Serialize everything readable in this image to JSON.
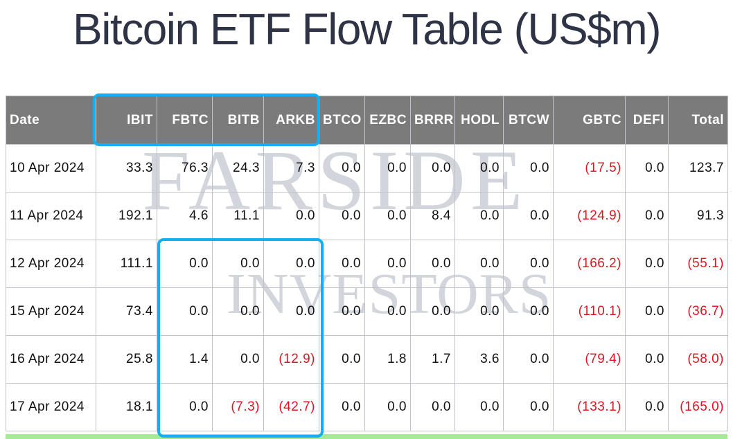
{
  "title": "Bitcoin ETF Flow Table (US$m)",
  "watermark": {
    "line1": "FARSIDE",
    "line2": "INVESTORS"
  },
  "columns": [
    "Date",
    "IBIT",
    "FBTC",
    "BITB",
    "ARKB",
    "BTCO",
    "EZBC",
    "BRRR",
    "HODL",
    "BTCW",
    "GBTC",
    "DEFI",
    "Total"
  ],
  "rows": [
    [
      "10 Apr 2024",
      "33.3",
      "76.3",
      "24.3",
      "7.3",
      "0.0",
      "0.0",
      "0.0",
      "0.0",
      "0.0",
      "(17.5)",
      "0.0",
      "123.7"
    ],
    [
      "11 Apr 2024",
      "192.1",
      "4.6",
      "11.1",
      "0.0",
      "0.0",
      "0.0",
      "8.4",
      "0.0",
      "0.0",
      "(124.9)",
      "0.0",
      "91.3"
    ],
    [
      "12 Apr 2024",
      "111.1",
      "0.0",
      "0.0",
      "0.0",
      "0.0",
      "0.0",
      "0.0",
      "0.0",
      "0.0",
      "(166.2)",
      "0.0",
      "(55.1)"
    ],
    [
      "15 Apr 2024",
      "73.4",
      "0.0",
      "0.0",
      "0.0",
      "0.0",
      "0.0",
      "0.0",
      "0.0",
      "0.0",
      "(110.1)",
      "0.0",
      "(36.7)"
    ],
    [
      "16 Apr 2024",
      "25.8",
      "1.4",
      "0.0",
      "(12.9)",
      "0.0",
      "1.8",
      "1.7",
      "3.6",
      "0.0",
      "(79.4)",
      "0.0",
      "(58.0)"
    ],
    [
      "17 Apr 2024",
      "18.1",
      "0.0",
      "(7.3)",
      "(42.7)",
      "0.0",
      "0.0",
      "0.0",
      "0.0",
      "0.0",
      "(133.1)",
      "0.0",
      "(165.0)"
    ]
  ],
  "colors": {
    "header_bg": "#7b7b7b",
    "negative": "#e0141e",
    "highlight": "#12b0f2",
    "title": "#2f3346"
  }
}
